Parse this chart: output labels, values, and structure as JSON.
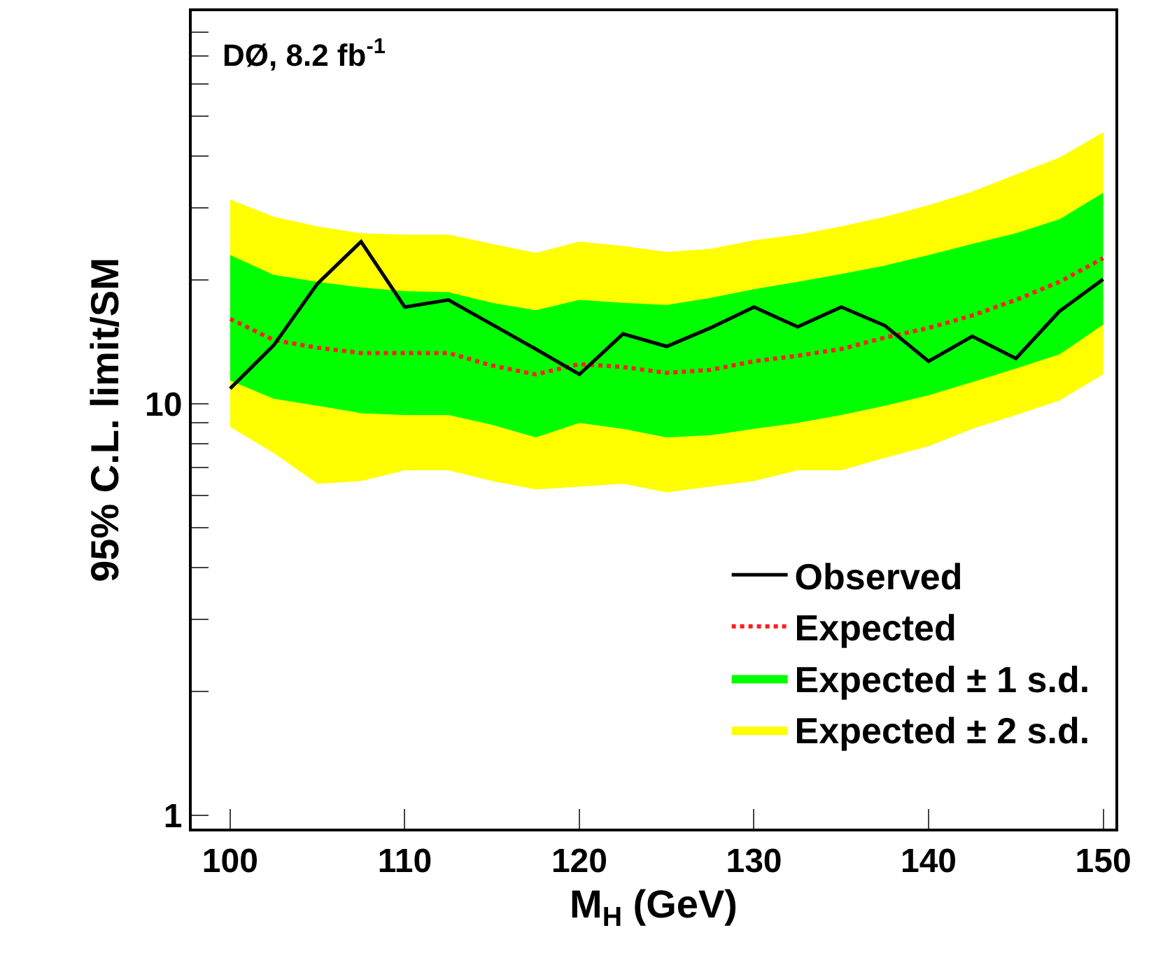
{
  "chart_data": {
    "type": "line",
    "xlabel": "M$_{H}$ (GeV)",
    "ylabel": "95% C.L. limit/SM",
    "annotations": [
      "DØ, 8.2 fb$^{-1}$"
    ],
    "x": [
      100,
      102.5,
      105,
      107.5,
      110,
      112.5,
      115,
      117.5,
      120,
      122.5,
      125,
      127.5,
      130,
      132.5,
      135,
      137.5,
      140,
      142.5,
      145,
      147.5,
      150
    ],
    "series": [
      {
        "name": "Observed",
        "color": "#000000",
        "line_style": "solid",
        "values": [
          10.9,
          13.9,
          19.6,
          24.8,
          17.2,
          17.9,
          15.6,
          13.6,
          11.8,
          14.8,
          13.8,
          15.3,
          17.2,
          15.4,
          17.2,
          15.5,
          12.7,
          14.6,
          12.9,
          16.8,
          20.1
        ]
      },
      {
        "name": "Expected",
        "color": "#ff2020",
        "line_style": "dotted",
        "values": [
          16.1,
          14.3,
          13.7,
          13.3,
          13.3,
          13.3,
          12.4,
          11.8,
          12.5,
          12.3,
          11.9,
          12.1,
          12.7,
          13.1,
          13.6,
          14.5,
          15.3,
          16.4,
          17.9,
          19.8,
          22.6
        ]
      },
      {
        "name": "Expected ± 1 s.d.",
        "type": "area",
        "color": "#00ff00",
        "values": [
          null,
          null,
          null,
          null,
          null,
          null,
          null,
          null,
          null,
          null,
          null,
          null,
          null,
          null,
          null,
          null,
          null,
          null,
          null,
          null,
          null
        ],
        "lower": [
          11.4,
          10.3,
          9.9,
          9.5,
          9.4,
          9.4,
          8.9,
          8.3,
          9.0,
          8.7,
          8.3,
          8.4,
          8.7,
          9.0,
          9.4,
          9.9,
          10.5,
          11.3,
          12.2,
          13.2,
          15.6
        ],
        "upper": [
          23.0,
          20.6,
          19.8,
          19.2,
          18.8,
          18.7,
          17.6,
          16.9,
          17.9,
          17.6,
          17.4,
          18.1,
          19.0,
          19.8,
          20.7,
          21.7,
          23.0,
          24.5,
          26.0,
          28.1,
          32.6
        ]
      },
      {
        "name": "Expected ± 2 s.d.",
        "type": "area",
        "color": "#ffff00",
        "values": [
          null,
          null,
          null,
          null,
          null,
          null,
          null,
          null,
          null,
          null,
          null,
          null,
          null,
          null,
          null,
          null,
          null,
          null,
          null,
          null,
          null
        ],
        "lower": [
          8.8,
          7.6,
          6.4,
          6.5,
          6.9,
          6.9,
          6.5,
          6.2,
          6.3,
          6.4,
          6.1,
          6.3,
          6.5,
          6.9,
          6.9,
          7.4,
          7.9,
          8.7,
          9.4,
          10.2,
          11.8
        ],
        "upper": [
          31.4,
          28.5,
          27.0,
          26.0,
          25.8,
          25.8,
          24.5,
          23.3,
          24.8,
          24.2,
          23.4,
          23.8,
          25.0,
          25.8,
          27.0,
          28.5,
          30.4,
          32.8,
          36.1,
          39.7,
          45.7
        ]
      }
    ],
    "log": true,
    "xlim": [
      97.8,
      150.7
    ],
    "xticks": [
      100,
      110,
      120,
      130,
      140,
      150
    ],
    "ylim": [
      0.93,
      90
    ],
    "yticks": [
      1,
      {
        "value": 2,
        "label": null
      },
      {
        "value": 3,
        "label": null
      },
      {
        "value": 4,
        "label": null
      },
      {
        "value": 5,
        "label": null
      },
      {
        "value": 6,
        "label": null
      },
      {
        "value": 7,
        "label": null
      },
      {
        "value": 8,
        "label": null
      },
      {
        "value": 9,
        "label": null
      },
      10,
      {
        "value": 20,
        "label": null
      },
      {
        "value": 30,
        "label": null
      },
      {
        "value": 40,
        "label": null
      },
      {
        "value": 50,
        "label": null
      },
      {
        "value": 60,
        "label": null
      },
      {
        "value": 70,
        "label": null
      },
      {
        "value": 80,
        "label": null
      }
    ],
    "grid": false,
    "legend": "bottom right",
    "marker": "none"
  }
}
